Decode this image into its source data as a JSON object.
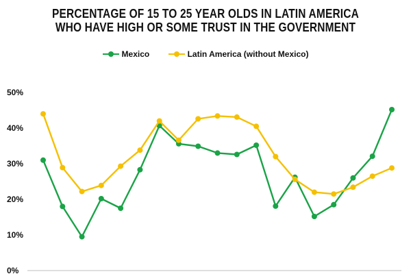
{
  "chart_data": {
    "type": "line",
    "title": [
      "PERCENTAGE OF 15 TO 25 YEAR OLDS IN LATIN AMERICA",
      "WHO HAVE HIGH OR SOME TRUST IN THE GOVERNMENT"
    ],
    "xlabel": "",
    "ylabel": "",
    "x": [
      1,
      2,
      3,
      4,
      5,
      6,
      7,
      8,
      9,
      10,
      11,
      12,
      13,
      14,
      15,
      16,
      17,
      18,
      19
    ],
    "ylim": [
      0,
      50
    ],
    "yticks": [
      0,
      10,
      20,
      30,
      40,
      50
    ],
    "ytick_labels": [
      "0%",
      "10%",
      "20%",
      "30%",
      "40%",
      "50%"
    ],
    "grid": false,
    "legend_position": "top-center",
    "series": [
      {
        "name": "Mexico",
        "color": "#1aa347",
        "values": [
          31,
          18,
          9.5,
          20.2,
          17.5,
          28.3,
          40.7,
          35.6,
          34.9,
          33.0,
          32.6,
          35.2,
          18.1,
          26.2,
          15.2,
          18.5,
          26.0,
          32.1,
          45.2
        ]
      },
      {
        "name": "Latin America (without Mexico)",
        "color": "#f5c000",
        "values": [
          44.0,
          28.9,
          22.2,
          23.9,
          29.3,
          33.8,
          42.0,
          36.6,
          42.6,
          43.4,
          43.1,
          40.5,
          32.0,
          25.6,
          22.0,
          21.5,
          23.4,
          26.5,
          28.8
        ]
      }
    ]
  }
}
